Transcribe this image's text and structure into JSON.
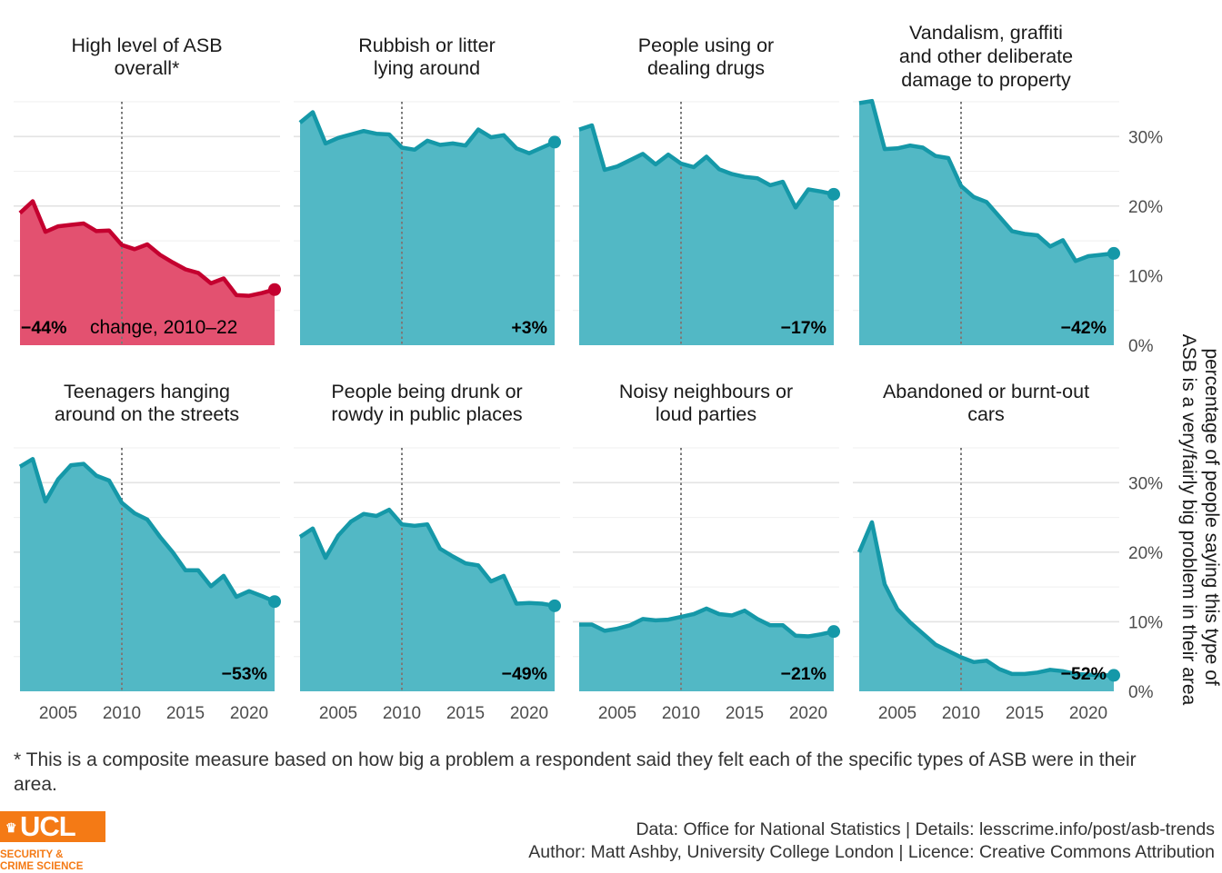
{
  "chart_data": {
    "type": "area",
    "title": "",
    "ylabel_line1": "percentage of people saying this type of",
    "ylabel_line2": "ASB is a very/fairly big problem in their area",
    "x_ticks": [
      2005,
      2010,
      2015,
      2020
    ],
    "x_ticks_label": [
      "2005",
      "2010",
      "2015",
      "2020"
    ],
    "y_ticks_label": [
      "0%",
      "10%",
      "20%",
      "30%"
    ],
    "y_ticks": [
      0,
      10,
      20,
      30
    ],
    "xlim": [
      2002,
      2022
    ],
    "ylim": [
      0,
      35
    ],
    "reference_year": 2010,
    "x": [
      2002,
      2003,
      2004,
      2005,
      2006,
      2007,
      2008,
      2009,
      2010,
      2011,
      2012,
      2013,
      2014,
      2015,
      2016,
      2017,
      2018,
      2019,
      2020,
      2021,
      2022
    ],
    "change_note": "change, 2010–22",
    "highlight_color": "#c4002f",
    "highlight_fill": "#e35170",
    "series_color": "#1598a8",
    "series_fill": "#52b8c5",
    "panels": [
      {
        "title_lines": [
          "High level of ASB",
          "overall*"
        ],
        "change": "−44%",
        "highlight": true,
        "values": [
          19,
          20.7,
          16.3,
          17.1,
          17.3,
          17.5,
          16.4,
          16.5,
          14.4,
          13.8,
          14.5,
          13.0,
          11.9,
          10.9,
          10.4,
          8.9,
          9.6,
          7.2,
          7.1,
          7.5,
          8.0
        ]
      },
      {
        "title_lines": [
          "Rubbish or litter",
          "lying around"
        ],
        "change": "+3%",
        "highlight": false,
        "values": [
          32,
          33.5,
          29.0,
          29.8,
          30.3,
          30.8,
          30.4,
          30.3,
          28.4,
          28.1,
          29.4,
          28.8,
          29.0,
          28.7,
          31.0,
          29.9,
          30.2,
          28.3,
          27.6,
          28.4,
          29.2
        ]
      },
      {
        "title_lines": [
          "People using or",
          "dealing drugs"
        ],
        "change": "−17%",
        "highlight": false,
        "values": [
          31,
          31.6,
          25.2,
          25.7,
          26.6,
          27.5,
          26.0,
          27.4,
          26.1,
          25.6,
          27.1,
          25.3,
          24.6,
          24.2,
          24.0,
          23.0,
          23.5,
          19.8,
          22.4,
          22.1,
          21.7
        ]
      },
      {
        "title_lines": [
          "Vandalism, graffiti",
          "and other deliberate",
          "damage to property"
        ],
        "change": "−42%",
        "highlight": false,
        "values": [
          34.8,
          35.1,
          28.2,
          28.3,
          28.7,
          28.4,
          27.2,
          26.9,
          22.9,
          21.3,
          20.6,
          18.5,
          16.4,
          16.0,
          15.8,
          14.2,
          15.1,
          12.1,
          12.8,
          13.0,
          13.2
        ]
      },
      {
        "title_lines": [
          "Teenagers hanging",
          "around on the streets"
        ],
        "change": "−53%",
        "highlight": false,
        "values": [
          32.3,
          33.4,
          27.3,
          30.5,
          32.5,
          32.7,
          31.0,
          30.3,
          27.1,
          25.6,
          24.7,
          22.2,
          20.0,
          17.4,
          17.4,
          15.1,
          16.6,
          13.6,
          14.4,
          13.7,
          12.9
        ]
      },
      {
        "title_lines": [
          "People being drunk or",
          "rowdy in public places"
        ],
        "change": "−49%",
        "highlight": false,
        "values": [
          22.2,
          23.4,
          19.2,
          22.4,
          24.4,
          25.5,
          25.2,
          26.1,
          24.0,
          23.8,
          24.0,
          20.5,
          19.4,
          18.4,
          18.1,
          15.8,
          16.6,
          12.6,
          12.7,
          12.6,
          12.3
        ]
      },
      {
        "title_lines": [
          "Noisy neighbours or",
          "loud parties"
        ],
        "change": "−21%",
        "highlight": false,
        "values": [
          9.6,
          9.6,
          8.7,
          9.0,
          9.5,
          10.4,
          10.2,
          10.3,
          10.7,
          11.1,
          11.9,
          11.1,
          10.9,
          11.6,
          10.4,
          9.5,
          9.5,
          8.0,
          7.9,
          8.2,
          8.6
        ]
      },
      {
        "title_lines": [
          "Abandoned or burnt-out",
          "cars"
        ],
        "change": "−52%",
        "highlight": false,
        "values": [
          20.0,
          24.3,
          15.4,
          11.8,
          9.9,
          8.3,
          6.7,
          5.8,
          4.9,
          4.2,
          4.4,
          3.2,
          2.5,
          2.5,
          2.7,
          3.1,
          2.9,
          2.5,
          2.4,
          2.3,
          2.3
        ]
      }
    ]
  },
  "footnote": "* This is a composite measure based on how big a problem a respondent said they felt each of the specific types of ASB were in their area.",
  "credits_line1": "Data: Office for National Statistics |  Details: lesscrime.info/post/asb-trends",
  "credits_line2": "Author: Matt Ashby, University College London |  Licence: Creative Commons Attribution",
  "logo": {
    "main": "UCL",
    "sub_line1": "SECURITY &",
    "sub_line2": "CRIME SCIENCE",
    "crest": "crest-icon"
  }
}
